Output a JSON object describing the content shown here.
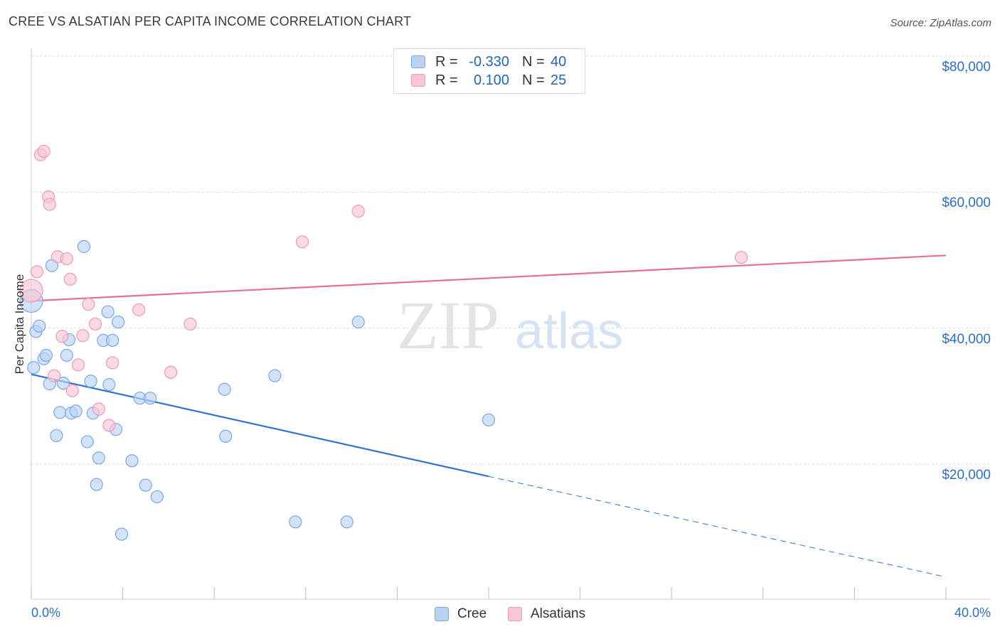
{
  "header": {
    "title": "CREE VS ALSATIAN PER CAPITA INCOME CORRELATION CHART",
    "source": "Source: ZipAtlas.com"
  },
  "watermark": {
    "zip": "ZIP",
    "atlas": "atlas"
  },
  "legend": {
    "rows": [
      {
        "r_label": "R =",
        "r_value": "-0.330",
        "n_label": "N =",
        "n_value": "40"
      },
      {
        "r_label": "R =",
        "r_value": "0.100",
        "n_label": "N =",
        "n_value": "25"
      }
    ],
    "series_labels": [
      "Cree",
      "Alsatians"
    ]
  },
  "colors": {
    "cree_fill": "#bad3f5",
    "cree_stroke": "#7aa8e6",
    "cree_line": "#2f72d4",
    "alsatian_fill": "#f9c6d6",
    "alsatian_stroke": "#ee9ab6",
    "alsatian_line": "#e4709a",
    "tick_label": "#2b6fcc",
    "grid": "#d8d8d8"
  },
  "chart_data": {
    "type": "scatter",
    "title": "CREE VS ALSATIAN PER CAPITA INCOME CORRELATION CHART",
    "ylabel": "Per Capita Income",
    "xlabel": "",
    "xlim": [
      0,
      40
    ],
    "ylim": [
      3000,
      83000
    ],
    "x_tick_labels": [
      "0.0%",
      "40.0%"
    ],
    "y_ticks": [
      20000,
      40000,
      60000,
      80000
    ],
    "y_tick_labels": [
      "$20,000",
      "$40,000",
      "$60,000",
      "$80,000"
    ],
    "grid": true,
    "legend_position": "top-center",
    "series": [
      {
        "name": "Cree",
        "points": [
          [
            0.0,
            44000
          ],
          [
            0.2,
            39500
          ],
          [
            0.35,
            40300
          ],
          [
            0.55,
            35500
          ],
          [
            0.65,
            36000
          ],
          [
            0.8,
            31800
          ],
          [
            0.9,
            49200
          ],
          [
            1.1,
            24200
          ],
          [
            1.25,
            27600
          ],
          [
            1.4,
            31900
          ],
          [
            1.55,
            36000
          ],
          [
            1.65,
            38300
          ],
          [
            1.75,
            27500
          ],
          [
            1.95,
            27800
          ],
          [
            2.3,
            52000
          ],
          [
            2.45,
            23300
          ],
          [
            2.6,
            32200
          ],
          [
            2.7,
            27500
          ],
          [
            2.85,
            17000
          ],
          [
            2.95,
            20900
          ],
          [
            3.15,
            38200
          ],
          [
            3.35,
            42400
          ],
          [
            3.4,
            31700
          ],
          [
            3.55,
            38200
          ],
          [
            3.7,
            25100
          ],
          [
            3.8,
            40900
          ],
          [
            3.95,
            9700
          ],
          [
            4.4,
            20500
          ],
          [
            4.75,
            29700
          ],
          [
            5.0,
            16900
          ],
          [
            5.2,
            29700
          ],
          [
            5.5,
            15200
          ],
          [
            8.45,
            31000
          ],
          [
            8.5,
            24100
          ],
          [
            10.65,
            33000
          ],
          [
            11.55,
            11500
          ],
          [
            13.8,
            11500
          ],
          [
            14.3,
            40900
          ],
          [
            20.0,
            26500
          ],
          [
            0.1,
            34200
          ]
        ],
        "trend": {
          "x": [
            0,
            20
          ],
          "y": [
            33200,
            18200
          ],
          "extended_to": [
            40,
            3400
          ]
        }
      },
      {
        "name": "Alsatians",
        "points": [
          [
            0.0,
            45500
          ],
          [
            0.25,
            48300
          ],
          [
            0.4,
            65500
          ],
          [
            0.55,
            66000
          ],
          [
            0.75,
            59300
          ],
          [
            0.8,
            58200
          ],
          [
            1.0,
            33000
          ],
          [
            1.15,
            50500
          ],
          [
            1.35,
            38800
          ],
          [
            1.55,
            50200
          ],
          [
            1.7,
            47200
          ],
          [
            1.8,
            30800
          ],
          [
            2.05,
            34600
          ],
          [
            2.25,
            38900
          ],
          [
            2.5,
            43500
          ],
          [
            2.8,
            40600
          ],
          [
            2.95,
            28100
          ],
          [
            3.4,
            25700
          ],
          [
            3.55,
            34900
          ],
          [
            4.7,
            42700
          ],
          [
            6.1,
            33500
          ],
          [
            6.95,
            40600
          ],
          [
            11.85,
            52700
          ],
          [
            14.3,
            57200
          ],
          [
            31.05,
            50400
          ]
        ],
        "trend": {
          "x": [
            0,
            40
          ],
          "y": [
            44000,
            50700
          ]
        }
      }
    ]
  }
}
